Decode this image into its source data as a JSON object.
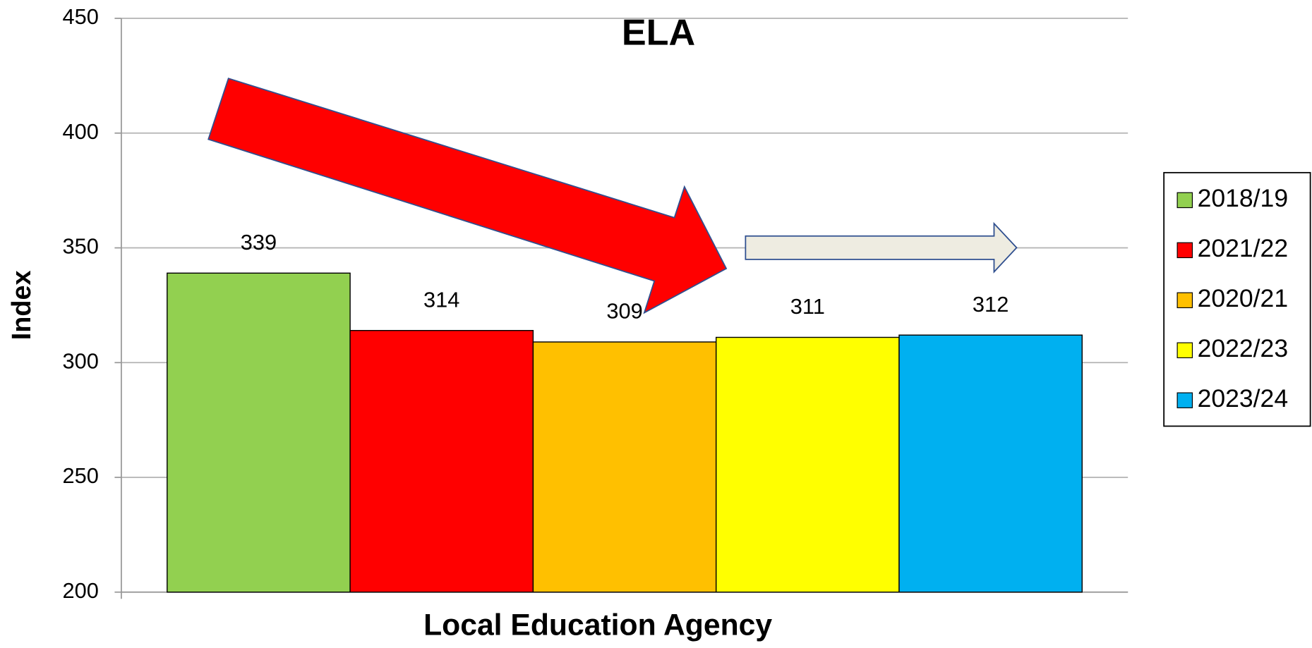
{
  "chart_data": {
    "type": "bar",
    "title": "ELA",
    "y_label": "Index",
    "categories": [
      "Local Education Agency"
    ],
    "series": [
      {
        "name": "2018/19",
        "color": "#92d050",
        "values": [
          339
        ]
      },
      {
        "name": "2021/22",
        "color": "#ff0000",
        "values": [
          314
        ]
      },
      {
        "name": "2020/21",
        "color": "#ffc000",
        "values": [
          309
        ]
      },
      {
        "name": "2022/23",
        "color": "#ffff00",
        "values": [
          311
        ]
      },
      {
        "name": "2023/24",
        "color": "#00b0f0",
        "values": [
          312
        ]
      }
    ],
    "ylim": [
      200,
      450
    ],
    "yticks": [
      200,
      250,
      300,
      350,
      400,
      450
    ],
    "grid": true,
    "legend": "right"
  }
}
